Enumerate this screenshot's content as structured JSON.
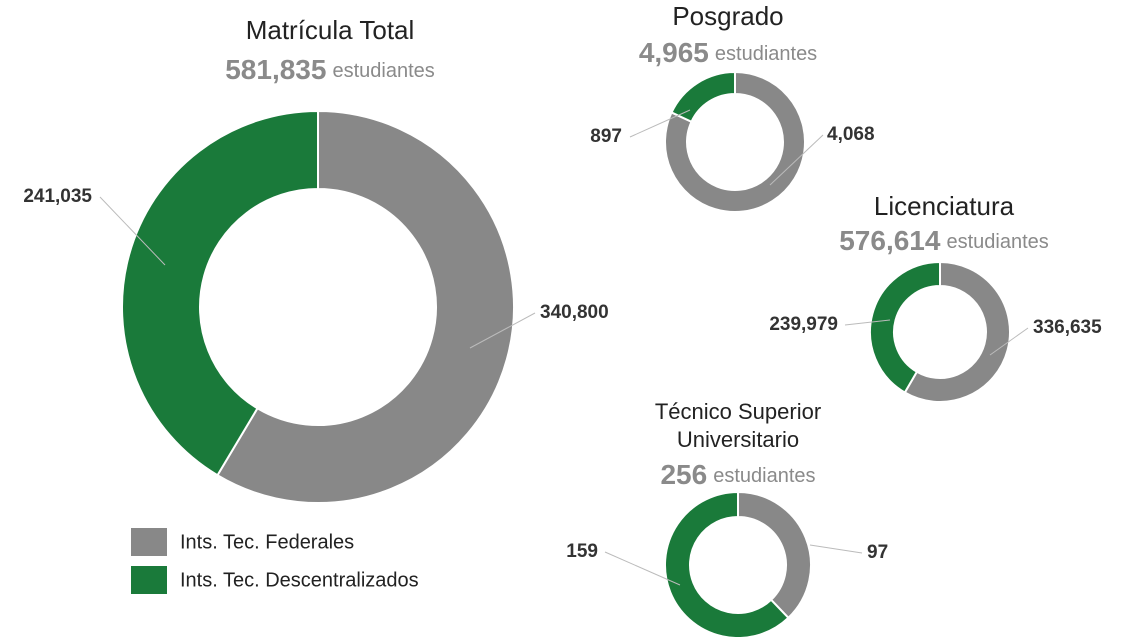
{
  "chart_data": [
    {
      "type": "pie",
      "title": "Matrícula Total",
      "subtitle_value": "581,835",
      "subtitle_unit": "estudiantes",
      "categories": [
        "Ints. Tec. Federales",
        "Ints. Tec. Descentralizados"
      ],
      "values": [
        340800,
        241035
      ],
      "value_labels": [
        "340,800",
        "241,035"
      ],
      "colors": [
        "#888888",
        "#1a7a3a"
      ],
      "legend": true
    },
    {
      "type": "pie",
      "title": "Posgrado",
      "subtitle_value": "4,965",
      "subtitle_unit": "estudiantes",
      "values": [
        4068,
        897
      ],
      "value_labels": [
        "4,068",
        "897"
      ],
      "colors": [
        "#888888",
        "#1a7a3a"
      ]
    },
    {
      "type": "pie",
      "title": "Licenciatura",
      "subtitle_value": "576,614",
      "subtitle_unit": "estudiantes",
      "values": [
        336635,
        239979
      ],
      "value_labels": [
        "336,635",
        "239,979"
      ],
      "colors": [
        "#888888",
        "#1a7a3a"
      ]
    },
    {
      "type": "pie",
      "title": [
        "Técnico Superior",
        "Universitario"
      ],
      "subtitle_value": "256",
      "subtitle_unit": "estudiantes",
      "values": [
        97,
        159
      ],
      "value_labels": [
        "97",
        "159"
      ],
      "colors": [
        "#888888",
        "#1a7a3a"
      ]
    }
  ]
}
